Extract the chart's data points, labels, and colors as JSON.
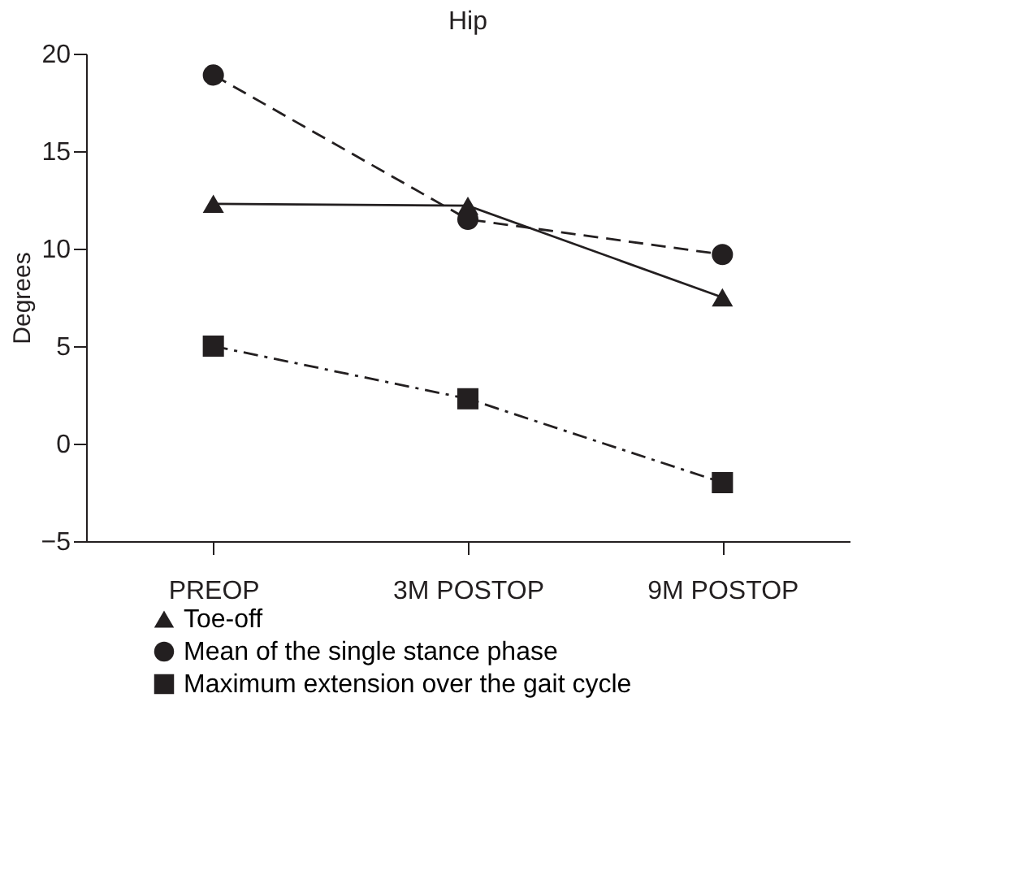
{
  "chart_data": {
    "type": "line",
    "title": "Hip",
    "ylabel": "Degrees",
    "categories": [
      "PREOP",
      "3M POSTOP",
      "9M POSTOP"
    ],
    "series": [
      {
        "name": "Toe-off",
        "color": "#231f20",
        "marker": "triangle",
        "line_style": "solid",
        "values": [
          12.3,
          12.2,
          7.5
        ]
      },
      {
        "name": "Mean of the single stance phase",
        "color": "#231f20",
        "marker": "circle",
        "line_style": "dashed",
        "values": [
          18.9,
          11.5,
          9.7
        ]
      },
      {
        "name": "Maximum extension over the gait cycle",
        "color": "#231f20",
        "marker": "square",
        "line_style": "dashdot",
        "values": [
          5.0,
          2.3,
          -2.0
        ]
      }
    ],
    "ylim": [
      -5,
      20
    ],
    "yticks": [
      -5,
      0,
      5,
      10,
      15,
      20
    ],
    "grid": false,
    "legend": "bottom left"
  }
}
